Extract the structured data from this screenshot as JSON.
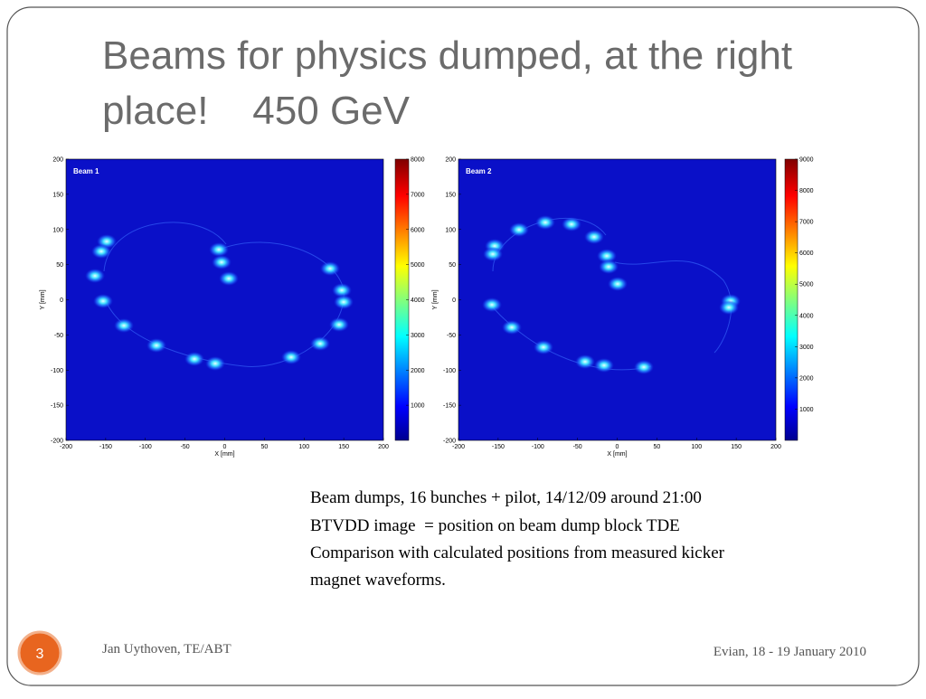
{
  "title": [
    "Beams for physics dumped, at the right",
    "place!    450 GeV"
  ],
  "plots": [
    {
      "label": "Beam 1",
      "xlabel": "X [mm]",
      "ylabel": "Y [mm]",
      "xlim": [
        -200,
        200
      ],
      "xticks": [
        -200,
        -150,
        -100,
        -50,
        0,
        50,
        100,
        150,
        200
      ],
      "ylim": [
        -200,
        200
      ],
      "yticks": [
        -200,
        -150,
        -100,
        -50,
        0,
        50,
        100,
        150,
        200
      ],
      "colorbar": {
        "lim": [
          0,
          8000
        ],
        "ticks": [
          1000,
          2000,
          3000,
          4000,
          5000,
          6000,
          7000,
          8000
        ]
      }
    },
    {
      "label": "Beam 2",
      "xlabel": "X [mm]",
      "ylabel": "Y [mm]",
      "xlim": [
        -200,
        200
      ],
      "xticks": [
        -200,
        -150,
        -100,
        -50,
        0,
        50,
        100,
        150,
        200
      ],
      "ylim": [
        -200,
        200
      ],
      "yticks": [
        -200,
        -150,
        -100,
        -50,
        0,
        50,
        100,
        150,
        200
      ],
      "colorbar": {
        "lim": [
          0,
          9000
        ],
        "ticks": [
          1000,
          2000,
          3000,
          4000,
          5000,
          6000,
          7000,
          8000,
          9000
        ]
      }
    }
  ],
  "text": [
    "Beam dumps, 16 bunches + pilot, 14/12/09 around 21:00",
    "BTVDD image  = position on beam dump block TDE",
    "Comparison with calculated positions from measured kicker",
    "magnet waveforms."
  ],
  "footer": {
    "page": "3",
    "author": "Jan Uythoven, TE/ABT",
    "event": "Evian, 18 - 19 January 2010"
  }
}
